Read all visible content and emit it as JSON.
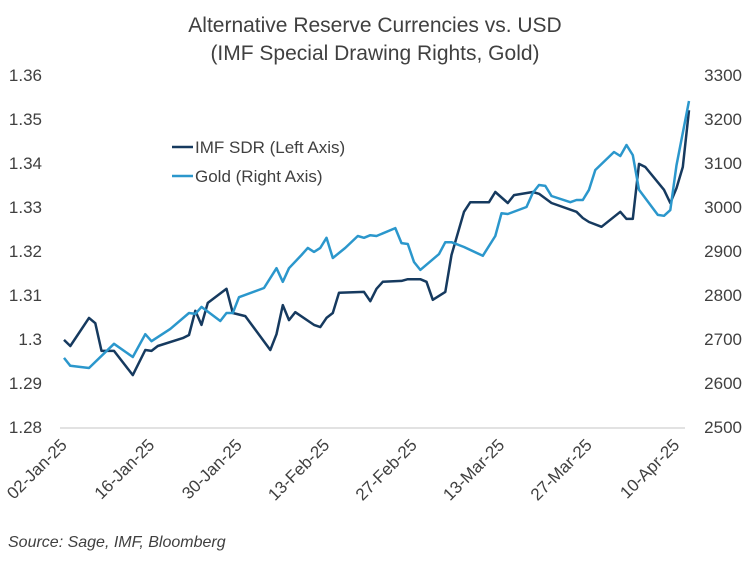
{
  "chart_data": {
    "type": "line",
    "title": "Alternative Reserve Currencies vs. USD",
    "subtitle": "(IMF Special Drawing Rights, Gold)",
    "xlabel": "",
    "ylabel_left": "",
    "ylabel_right": "",
    "source": "Source: Sage, IMF, Bloomberg",
    "grid": false,
    "legend_position": "upper-left-inside",
    "x_start": "2025-01-02",
    "x_ticks": [
      "02-Jan-25",
      "16-Jan-25",
      "30-Jan-25",
      "13-Feb-25",
      "27-Feb-25",
      "13-Mar-25",
      "27-Mar-25",
      "10-Apr-25"
    ],
    "x_tick_dates": [
      "2025-01-02",
      "2025-01-16",
      "2025-01-30",
      "2025-02-13",
      "2025-02-27",
      "2025-03-13",
      "2025-03-27",
      "2025-04-10"
    ],
    "y_left": {
      "range": [
        1.28,
        1.36
      ],
      "ticks": [
        "1.28",
        "1.29",
        "1.3",
        "1.31",
        "1.32",
        "1.33",
        "1.34",
        "1.35",
        "1.36"
      ]
    },
    "y_right": {
      "range": [
        2500,
        3300
      ],
      "ticks": [
        "2500",
        "2600",
        "2700",
        "2800",
        "2900",
        "3000",
        "3100",
        "3200",
        "3300"
      ]
    },
    "series": [
      {
        "name": "IMF SDR (Left Axis)",
        "axis": "left",
        "color": "#163a5f",
        "points": [
          [
            "2025-01-02",
            1.2998
          ],
          [
            "2025-01-03",
            1.2984
          ],
          [
            "2025-01-06",
            1.3048
          ],
          [
            "2025-01-07",
            1.3036
          ],
          [
            "2025-01-08",
            1.2973
          ],
          [
            "2025-01-10",
            1.2973
          ],
          [
            "2025-01-13",
            1.2918
          ],
          [
            "2025-01-15",
            1.2975
          ],
          [
            "2025-01-16",
            1.2973
          ],
          [
            "2025-01-17",
            1.2984
          ],
          [
            "2025-01-21",
            1.3002
          ],
          [
            "2025-01-22",
            1.3009
          ],
          [
            "2025-01-23",
            1.3064
          ],
          [
            "2025-01-24",
            1.3032
          ],
          [
            "2025-01-25",
            1.3082
          ],
          [
            "2025-01-28",
            1.3114
          ],
          [
            "2025-01-29",
            1.3059
          ],
          [
            "2025-01-31",
            1.3052
          ],
          [
            "2025-02-04",
            1.2975
          ],
          [
            "2025-02-05",
            1.3011
          ],
          [
            "2025-02-06",
            1.3077
          ],
          [
            "2025-02-07",
            1.3043
          ],
          [
            "2025-02-08",
            1.3061
          ],
          [
            "2025-02-11",
            1.3032
          ],
          [
            "2025-02-12",
            1.3027
          ],
          [
            "2025-02-13",
            1.3048
          ],
          [
            "2025-02-14",
            1.3059
          ],
          [
            "2025-02-15",
            1.3105
          ],
          [
            "2025-02-19",
            1.3107
          ],
          [
            "2025-02-20",
            1.3086
          ],
          [
            "2025-02-21",
            1.3114
          ],
          [
            "2025-02-22",
            1.313
          ],
          [
            "2025-02-25",
            1.3132
          ],
          [
            "2025-02-26",
            1.3136
          ],
          [
            "2025-02-28",
            1.3136
          ],
          [
            "2025-03-01",
            1.313
          ],
          [
            "2025-03-02",
            1.3089
          ],
          [
            "2025-03-04",
            1.3107
          ],
          [
            "2025-03-05",
            1.3191
          ],
          [
            "2025-03-07",
            1.3289
          ],
          [
            "2025-03-08",
            1.3311
          ],
          [
            "2025-03-11",
            1.3311
          ],
          [
            "2025-03-12",
            1.3334
          ],
          [
            "2025-03-14",
            1.3309
          ],
          [
            "2025-03-15",
            1.3327
          ],
          [
            "2025-03-18",
            1.3334
          ],
          [
            "2025-03-19",
            1.333
          ],
          [
            "2025-03-21",
            1.3309
          ],
          [
            "2025-03-25",
            1.3289
          ],
          [
            "2025-03-26",
            1.3275
          ],
          [
            "2025-03-27",
            1.3266
          ],
          [
            "2025-03-29",
            1.3255
          ],
          [
            "2025-04-01",
            1.3289
          ],
          [
            "2025-04-02",
            1.3273
          ],
          [
            "2025-04-03",
            1.3273
          ],
          [
            "2025-04-04",
            1.3398
          ],
          [
            "2025-04-05",
            1.3391
          ],
          [
            "2025-04-08",
            1.3339
          ],
          [
            "2025-04-09",
            1.3309
          ],
          [
            "2025-04-10",
            1.3343
          ],
          [
            "2025-04-11",
            1.3391
          ],
          [
            "2025-04-12",
            1.352
          ]
        ]
      },
      {
        "name": "Gold (Right Axis)",
        "axis": "right",
        "color": "#2b97cc",
        "points": [
          [
            "2025-01-02",
            2657
          ],
          [
            "2025-01-03",
            2639
          ],
          [
            "2025-01-06",
            2634
          ],
          [
            "2025-01-10",
            2689
          ],
          [
            "2025-01-13",
            2659
          ],
          [
            "2025-01-15",
            2711
          ],
          [
            "2025-01-16",
            2695
          ],
          [
            "2025-01-19",
            2723
          ],
          [
            "2025-01-22",
            2759
          ],
          [
            "2025-01-23",
            2757
          ],
          [
            "2025-01-24",
            2773
          ],
          [
            "2025-01-27",
            2741
          ],
          [
            "2025-01-28",
            2759
          ],
          [
            "2025-01-29",
            2759
          ],
          [
            "2025-01-30",
            2795
          ],
          [
            "2025-02-03",
            2816
          ],
          [
            "2025-02-05",
            2861
          ],
          [
            "2025-02-06",
            2830
          ],
          [
            "2025-02-07",
            2861
          ],
          [
            "2025-02-09",
            2891
          ],
          [
            "2025-02-10",
            2907
          ],
          [
            "2025-02-11",
            2898
          ],
          [
            "2025-02-12",
            2907
          ],
          [
            "2025-02-13",
            2930
          ],
          [
            "2025-02-14",
            2884
          ],
          [
            "2025-02-16",
            2907
          ],
          [
            "2025-02-18",
            2934
          ],
          [
            "2025-02-19",
            2930
          ],
          [
            "2025-02-20",
            2936
          ],
          [
            "2025-02-21",
            2934
          ],
          [
            "2025-02-24",
            2952
          ],
          [
            "2025-02-25",
            2918
          ],
          [
            "2025-02-26",
            2916
          ],
          [
            "2025-02-27",
            2875
          ],
          [
            "2025-02-28",
            2857
          ],
          [
            "2025-03-03",
            2893
          ],
          [
            "2025-03-04",
            2920
          ],
          [
            "2025-03-05",
            2920
          ],
          [
            "2025-03-07",
            2909
          ],
          [
            "2025-03-10",
            2889
          ],
          [
            "2025-03-12",
            2934
          ],
          [
            "2025-03-13",
            2986
          ],
          [
            "2025-03-14",
            2984
          ],
          [
            "2025-03-17",
            3000
          ],
          [
            "2025-03-18",
            3032
          ],
          [
            "2025-03-19",
            3050
          ],
          [
            "2025-03-20",
            3048
          ],
          [
            "2025-03-21",
            3025
          ],
          [
            "2025-03-24",
            3011
          ],
          [
            "2025-03-25",
            3016
          ],
          [
            "2025-03-26",
            3016
          ],
          [
            "2025-03-27",
            3039
          ],
          [
            "2025-03-28",
            3084
          ],
          [
            "2025-03-31",
            3125
          ],
          [
            "2025-04-01",
            3116
          ],
          [
            "2025-04-02",
            3141
          ],
          [
            "2025-04-03",
            3118
          ],
          [
            "2025-04-04",
            3039
          ],
          [
            "2025-04-07",
            2982
          ],
          [
            "2025-04-08",
            2980
          ],
          [
            "2025-04-09",
            2993
          ],
          [
            "2025-04-10",
            3095
          ],
          [
            "2025-04-12",
            3241
          ]
        ]
      }
    ]
  }
}
